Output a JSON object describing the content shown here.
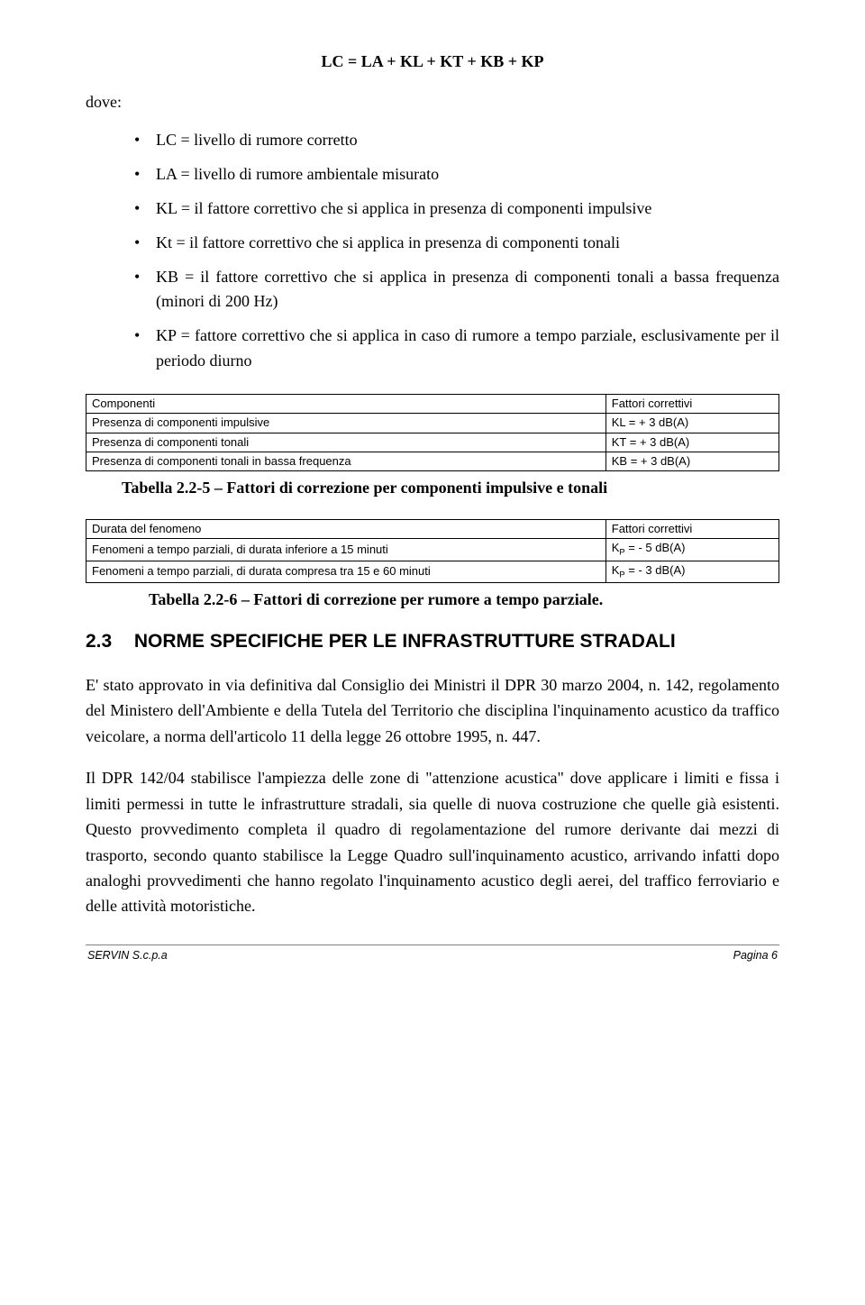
{
  "formula": "LC = LA + KL + KT + KB + KP",
  "dove": "dove:",
  "bullets": [
    "LC = livello di rumore corretto",
    "LA = livello di rumore ambientale misurato",
    "KL = il fattore correttivo che si applica in presenza di componenti impulsive",
    "Kt = il fattore correttivo che si applica in presenza di componenti tonali",
    "KB = il fattore correttivo che si applica in presenza di componenti tonali a bassa frequenza (minori di 200 Hz)",
    "KP = fattore correttivo che si applica in caso di rumore a tempo parziale, esclusivamente per il periodo diurno"
  ],
  "table1": {
    "rows": [
      [
        "Componenti",
        "Fattori correttivi"
      ],
      [
        "Presenza di componenti impulsive",
        "KL =  + 3 dB(A)"
      ],
      [
        "Presenza di componenti tonali",
        "KT =  + 3 dB(A)"
      ],
      [
        "Presenza di componenti tonali in bassa frequenza",
        "KB =  + 3 dB(A)"
      ]
    ]
  },
  "caption1": "Tabella 2.2-5 – Fattori di correzione per componenti impulsive e tonali",
  "table2": {
    "rows": [
      [
        "Durata del fenomeno",
        "Fattori correttivi"
      ],
      [
        "Fenomeni a tempo parziali, di durata inferiore a 15 minuti",
        "K<sub>P</sub> =  - 5 dB(A)"
      ],
      [
        "Fenomeni a tempo parziali, di durata compresa tra 15 e 60 minuti",
        "K<sub>P</sub> =  - 3 dB(A)"
      ]
    ]
  },
  "caption2": "Tabella 2.2-6 – Fattori di correzione per rumore a tempo parziale.",
  "section_num": "2.3",
  "section_title": "NORME SPECIFICHE PER LE INFRASTRUTTURE STRADALI",
  "para1": "E' stato approvato in via definitiva dal Consiglio dei Ministri il DPR 30 marzo 2004, n. 142, regolamento del Ministero dell'Ambiente e della Tutela del Territorio che disciplina l'inquinamento acustico da traffico veicolare, a norma dell'articolo 11 della legge 26 ottobre 1995, n. 447.",
  "para2": "Il DPR 142/04 stabilisce l'ampiezza delle zone di \"attenzione acustica\" dove applicare i limiti e fissa i limiti permessi in tutte le infrastrutture stradali, sia quelle di nuova costruzione che quelle già esistenti. Questo provvedimento completa il quadro di regolamentazione del rumore derivante dai mezzi di trasporto, secondo quanto stabilisce la Legge Quadro sull'inquinamento acustico, arrivando infatti dopo analoghi provvedimenti che hanno regolato l'inquinamento acustico degli aerei, del traffico ferroviario e delle attività motoristiche.",
  "footer_left": "SERVIN  S.c.p.a",
  "footer_right": "Pagina 6"
}
